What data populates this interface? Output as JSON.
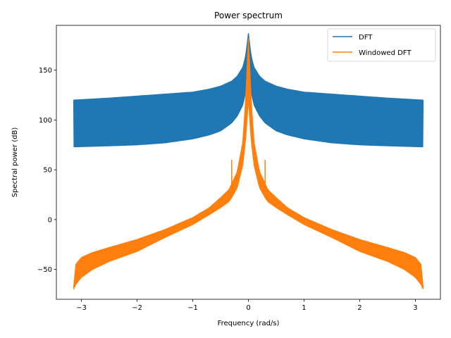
{
  "chart_data": {
    "type": "line",
    "title": "Power spectrum",
    "xlabel": "Frequency (rad/s)",
    "ylabel": "Spectral power (dB)",
    "xlim": [
      -3.45,
      3.45
    ],
    "ylim": [
      -80,
      195
    ],
    "xticks": [
      -3,
      -2,
      -1,
      0,
      1,
      2,
      3
    ],
    "xtick_labels": [
      "−3",
      "−2",
      "−1",
      "0",
      "1",
      "2",
      "3"
    ],
    "yticks": [
      -50,
      0,
      50,
      100,
      150
    ],
    "ytick_labels": [
      "−50",
      "0",
      "50",
      "100",
      "150"
    ],
    "grid": false,
    "legend": "upper right",
    "colors": {
      "DFT": "#1f77b4",
      "Windowed DFT": "#ff7f0e"
    },
    "series": [
      {
        "name": "DFT",
        "color": "#1f77b4",
        "x_range": [
          -3.14,
          3.14
        ],
        "upper": {
          "x": [
            -3.14,
            -2.5,
            -2.0,
            -1.5,
            -1.0,
            -0.7,
            -0.5,
            -0.3,
            -0.2,
            -0.1,
            -0.05,
            0,
            0.05,
            0.1,
            0.2,
            0.3,
            0.5,
            0.7,
            1.0,
            1.5,
            2.0,
            2.5,
            3.14
          ],
          "y": [
            120,
            122,
            124,
            126,
            128,
            131,
            134,
            139,
            144,
            153,
            164,
            187,
            164,
            153,
            144,
            139,
            134,
            131,
            128,
            126,
            124,
            122,
            120
          ]
        },
        "lower": {
          "x": [
            -3.14,
            -2.5,
            -2.0,
            -1.5,
            -1.0,
            -0.7,
            -0.5,
            -0.3,
            -0.2,
            -0.1,
            -0.05,
            0,
            0.05,
            0.1,
            0.2,
            0.3,
            0.5,
            0.7,
            1.0,
            1.5,
            2.0,
            2.5,
            3.14
          ],
          "y": [
            73,
            74,
            75,
            77,
            81,
            85,
            89,
            97,
            104,
            115,
            128,
            150,
            128,
            115,
            104,
            97,
            89,
            85,
            81,
            77,
            75,
            74,
            73
          ]
        }
      },
      {
        "name": "Windowed DFT",
        "color": "#ff7f0e",
        "x_range": [
          -3.14,
          3.14
        ],
        "upper": {
          "x": [
            -3.14,
            -3.1,
            -3.0,
            -2.8,
            -2.5,
            -2.0,
            -1.5,
            -1.0,
            -0.7,
            -0.5,
            -0.35,
            -0.3,
            -0.2,
            -0.1,
            -0.05,
            0,
            0.05,
            0.1,
            0.2,
            0.3,
            0.35,
            0.5,
            0.7,
            1.0,
            1.5,
            2.0,
            2.5,
            2.8,
            3.0,
            3.1,
            3.14
          ],
          "y": [
            -68,
            -45,
            -38,
            -33,
            -28,
            -20,
            -10,
            2,
            12,
            22,
            30,
            36,
            48,
            78,
            120,
            182,
            120,
            78,
            48,
            36,
            30,
            22,
            12,
            2,
            -10,
            -20,
            -28,
            -33,
            -38,
            -45,
            -68
          ]
        },
        "lower": {
          "x": [
            -3.14,
            -3.1,
            -3.0,
            -2.8,
            -2.5,
            -2.0,
            -1.5,
            -1.0,
            -0.7,
            -0.5,
            -0.35,
            -0.3,
            -0.2,
            -0.1,
            -0.05,
            0,
            0.05,
            0.1,
            0.2,
            0.3,
            0.35,
            0.5,
            0.7,
            1.0,
            1.5,
            2.0,
            2.5,
            2.8,
            3.0,
            3.1,
            3.14
          ],
          "y": [
            -70,
            -65,
            -58,
            -50,
            -42,
            -32,
            -18,
            -5,
            5,
            12,
            18,
            22,
            32,
            55,
            80,
            120,
            80,
            55,
            32,
            22,
            18,
            12,
            5,
            -5,
            -18,
            -32,
            -42,
            -50,
            -58,
            -65,
            -70
          ]
        },
        "spikes": [
          {
            "x": -0.3,
            "y": 60
          },
          {
            "x": 0.3,
            "y": 60
          }
        ]
      }
    ]
  }
}
